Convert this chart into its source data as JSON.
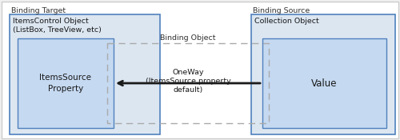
{
  "fig_bg": "#f0f0f0",
  "white_bg": "#ffffff",
  "box_fill_outer": "#dce6f1",
  "box_fill_inner": "#c5d9f1",
  "box_edge_blue": "#4f81bd",
  "box_edge_dark": "#4f81bd",
  "dashed_stroke": "#aaaaaa",
  "arrow_color": "#1a1a1a",
  "text_dark": "#1a1a1a",
  "text_label": "#333333",
  "binding_target_label": "Binding Target",
  "binding_source_label": "Binding Source",
  "binding_object_label": "Binding Object",
  "outer_left_line1": "ItemsControl Object",
  "outer_left_line2": "(ListBox, TreeView, etc)",
  "inner_left_label": "ItemsSource\nProperty",
  "outer_right_label": "Collection Object",
  "inner_right_label": "Value",
  "arrow_line1": "OneWay",
  "arrow_line2": "(ItemsSource property",
  "arrow_line3": "default)"
}
